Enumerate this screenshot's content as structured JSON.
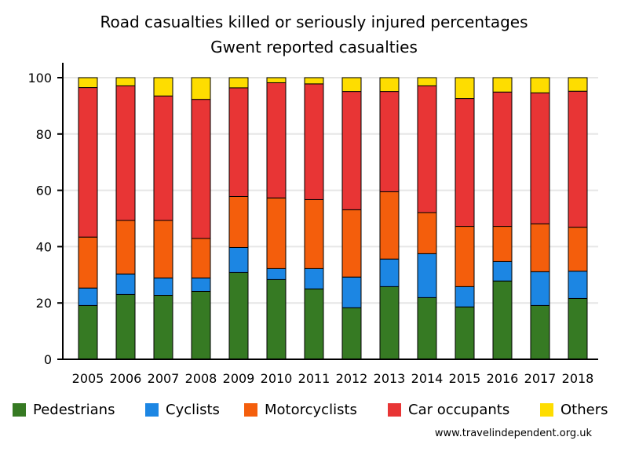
{
  "chart_data": {
    "type": "bar",
    "stacked": true,
    "title": "Road casualties killed or seriously injured percentages",
    "subtitle": "Gwent reported casualties",
    "xlabel": "",
    "ylabel": "",
    "ylim": [
      0,
      100
    ],
    "yticks": [
      0,
      20,
      40,
      60,
      80,
      100
    ],
    "grid": true,
    "legend_position": "bottom",
    "categories": [
      "2005",
      "2006",
      "2007",
      "2008",
      "2009",
      "2010",
      "2011",
      "2012",
      "2013",
      "2014",
      "2015",
      "2016",
      "2017",
      "2018"
    ],
    "series": [
      {
        "name": "Pedestrians",
        "color": "#367a23",
        "values": [
          19.1,
          23.0,
          22.7,
          24.1,
          30.8,
          28.3,
          25.0,
          18.3,
          25.8,
          21.9,
          18.6,
          27.8,
          19.1,
          21.6
        ]
      },
      {
        "name": "Cyclists",
        "color": "#1c86e3",
        "values": [
          6.2,
          7.3,
          6.2,
          4.8,
          8.9,
          3.9,
          7.2,
          10.9,
          9.8,
          15.6,
          7.2,
          6.9,
          12.0,
          9.7
        ]
      },
      {
        "name": "Motorcyclists",
        "color": "#f45e0c",
        "values": [
          18.1,
          19.0,
          20.4,
          14.0,
          18.1,
          25.1,
          24.5,
          23.9,
          23.9,
          14.6,
          21.4,
          12.5,
          17.0,
          15.6
        ]
      },
      {
        "name": "Car occupants",
        "color": "#e83535",
        "values": [
          53.1,
          47.8,
          44.2,
          49.4,
          38.6,
          40.9,
          41.1,
          42.0,
          35.6,
          45.0,
          45.4,
          47.7,
          46.5,
          48.3
        ]
      },
      {
        "name": "Others",
        "color": "#fedd00",
        "values": [
          3.5,
          2.9,
          6.5,
          7.7,
          3.6,
          1.8,
          2.2,
          4.9,
          4.9,
          2.9,
          7.4,
          5.1,
          5.4,
          4.8
        ]
      }
    ]
  },
  "footer": {
    "source": "www.travelindependent.org.uk"
  }
}
